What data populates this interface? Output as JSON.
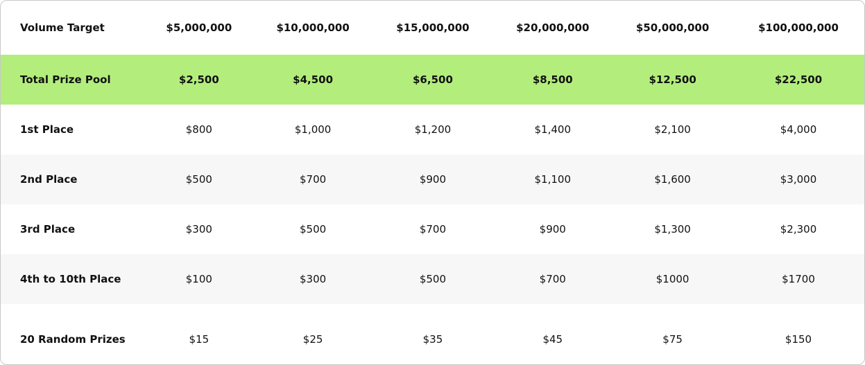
{
  "table": {
    "header": [
      "Volume Target",
      "$5,000,000",
      "$10,000,000",
      "$15,000,000",
      "$20,000,000",
      "$50,000,000",
      "$100,000,000"
    ],
    "rows": [
      [
        "Total Prize Pool",
        "$2,500",
        "$4,500",
        "$6,500",
        "$8,500",
        "$12,500",
        "$22,500"
      ],
      [
        "1st Place",
        "$800",
        "$1,000",
        "$1,200",
        "$1,400",
        "$2,100",
        "$4,000"
      ],
      [
        "2nd Place",
        "$500",
        "$700",
        "$900",
        "$1,100",
        "$1,600",
        "$3,000"
      ],
      [
        "3rd Place",
        "$300",
        "$500",
        "$700",
        "$900",
        "$1,300",
        "$2,300"
      ],
      [
        "4th to 10th Place",
        "$100",
        "$300",
        "$500",
        "$700",
        "$1000",
        "$1700"
      ],
      [
        "20 Random Prizes",
        "$15",
        "$25",
        "$35",
        "$45",
        "$75",
        "$150"
      ]
    ]
  }
}
